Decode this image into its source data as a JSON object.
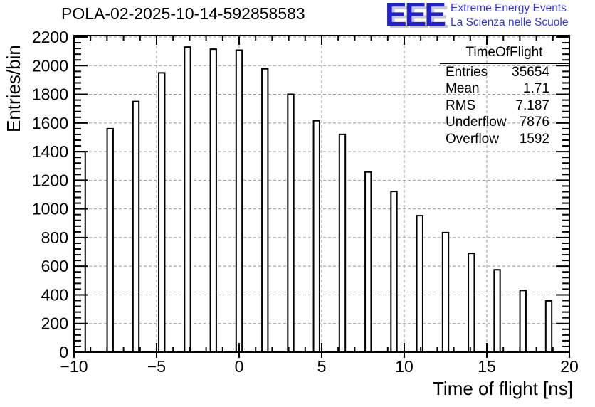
{
  "logo": {
    "acronym": "EEE",
    "line1": "Extreme Energy Events",
    "line2": "La Scienza nelle Scuole",
    "acronym_color": "#2121cf",
    "subtitle_color": "#3434f0",
    "shadow_color": "#c8c8c8"
  },
  "stats": {
    "title": "TimeOfFlight",
    "rows": [
      {
        "label": "Entries",
        "value": "35654"
      },
      {
        "label": "Mean",
        "value": "1.71"
      },
      {
        "label": "RMS",
        "value": "7.187"
      },
      {
        "label": "Underflow",
        "value": "7876"
      },
      {
        "label": "Overflow",
        "value": "1592"
      }
    ]
  },
  "chart_data": {
    "type": "bar",
    "title": "POLA-02-2025-10-14-592858583",
    "xlabel": "Time of flight [ns]",
    "ylabel": "Entries/bin",
    "xlim": [
      -10,
      20
    ],
    "ylim": [
      0,
      2210
    ],
    "grid": true,
    "grid_color": "#999999",
    "line_color": "#000000",
    "bar_fill": "#ffffff",
    "bin_width": 0.36,
    "bins": [
      {
        "x": -9.66,
        "w": 0.68,
        "v": 1400
      },
      {
        "x": -7.8125,
        "v": 1560
      },
      {
        "x": -6.25,
        "v": 1750
      },
      {
        "x": -4.6875,
        "v": 1950
      },
      {
        "x": -3.125,
        "v": 2130
      },
      {
        "x": -1.5625,
        "v": 2115
      },
      {
        "x": 0,
        "v": 2108
      },
      {
        "x": 1.5625,
        "v": 1978
      },
      {
        "x": 3.125,
        "v": 1800
      },
      {
        "x": 4.6875,
        "v": 1615
      },
      {
        "x": 6.25,
        "v": 1520
      },
      {
        "x": 7.8125,
        "v": 1258
      },
      {
        "x": 9.375,
        "v": 1122
      },
      {
        "x": 10.9375,
        "v": 953
      },
      {
        "x": 12.5,
        "v": 835
      },
      {
        "x": 14.0625,
        "v": 690
      },
      {
        "x": 15.625,
        "v": 575
      },
      {
        "x": 17.1875,
        "v": 430
      },
      {
        "x": 18.75,
        "v": 358
      }
    ],
    "x_major_ticks": [
      {
        "v": -10,
        "label": "−10"
      },
      {
        "v": -5,
        "label": "−5"
      },
      {
        "v": 0,
        "label": "0"
      },
      {
        "v": 5,
        "label": "5"
      },
      {
        "v": 10,
        "label": "10"
      },
      {
        "v": 15,
        "label": "15"
      },
      {
        "v": 20,
        "label": "20"
      }
    ],
    "x_minor_step": 1,
    "x_major_step": 5,
    "y_major_ticks": [
      {
        "v": 0,
        "label": "0"
      },
      {
        "v": 200,
        "label": "200"
      },
      {
        "v": 400,
        "label": "400"
      },
      {
        "v": 600,
        "label": "600"
      },
      {
        "v": 800,
        "label": "800"
      },
      {
        "v": 1000,
        "label": "1000"
      },
      {
        "v": 1200,
        "label": "1200"
      },
      {
        "v": 1400,
        "label": "1400"
      },
      {
        "v": 1600,
        "label": "1600"
      },
      {
        "v": 1800,
        "label": "1800"
      },
      {
        "v": 2000,
        "label": "2000"
      },
      {
        "v": 2200,
        "label": "2200"
      }
    ],
    "y_minor_step": 40,
    "y_major_step": 200,
    "legend_position": "none"
  }
}
